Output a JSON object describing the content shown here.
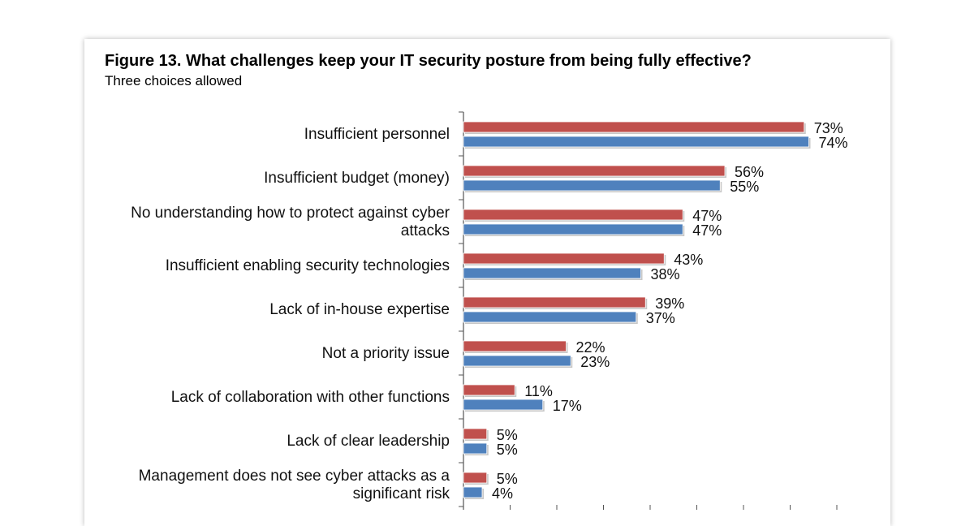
{
  "chart_data": {
    "type": "bar",
    "orientation": "horizontal",
    "title": "Figure 13. What challenges keep your IT security posture from being fully effective?",
    "subtitle": "Three choices allowed",
    "categories": [
      [
        "Insufficient personnel"
      ],
      [
        "Insufficient budget (money)"
      ],
      [
        "No understanding how to protect against cyber",
        "attacks"
      ],
      [
        "Insufficient enabling security technologies"
      ],
      [
        "Lack of in-house expertise"
      ],
      [
        "Not a priority issue"
      ],
      [
        "Lack of collaboration with other functions"
      ],
      [
        "Lack of clear leadership"
      ],
      [
        "Management does not see cyber attacks as a",
        "significant risk"
      ]
    ],
    "series": [
      {
        "color": "#c0504d",
        "values": [
          73,
          56,
          47,
          43,
          39,
          22,
          11,
          5,
          5
        ]
      },
      {
        "color": "#4f81bd",
        "values": [
          74,
          55,
          47,
          38,
          37,
          23,
          17,
          5,
          4
        ]
      }
    ],
    "value_format": "{v}%",
    "xlim": [
      0,
      80
    ],
    "grid": false,
    "legend": "none visible"
  }
}
